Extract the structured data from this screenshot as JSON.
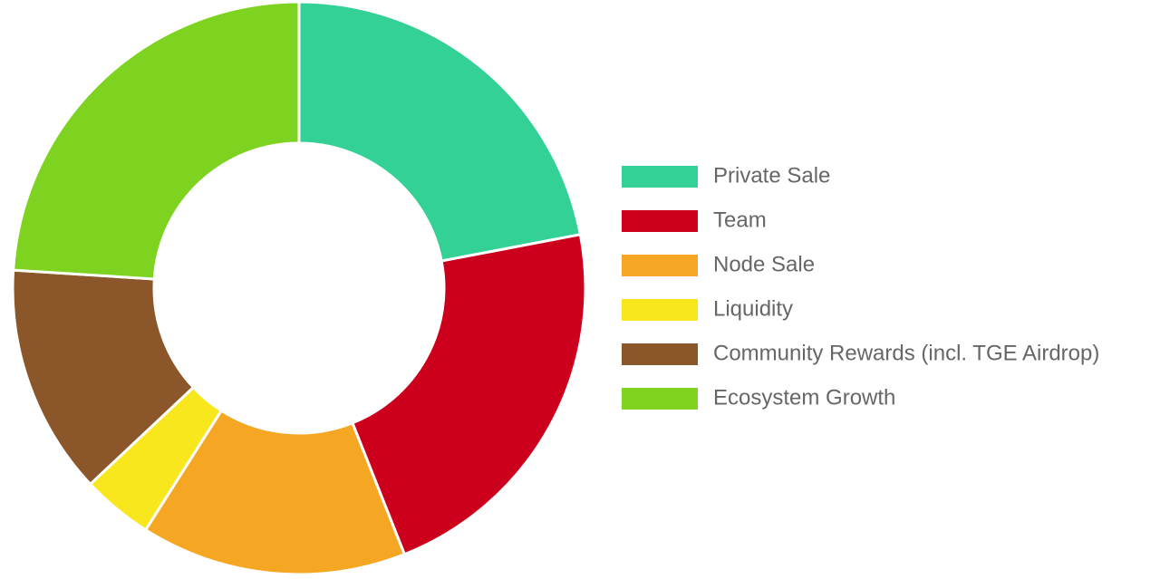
{
  "chart_data": {
    "type": "doughnut",
    "categories": [
      "Private Sale",
      "Team",
      "Node Sale",
      "Liquidity",
      "Community Rewards (incl. TGE Airdrop)",
      "Ecosystem Growth"
    ],
    "values": [
      22,
      22,
      15,
      4,
      13,
      24
    ],
    "colors": [
      "#33d196",
      "#cc001d",
      "#f5a623",
      "#f8e71c",
      "#8b572a",
      "#7ed321"
    ],
    "legend": "right"
  }
}
